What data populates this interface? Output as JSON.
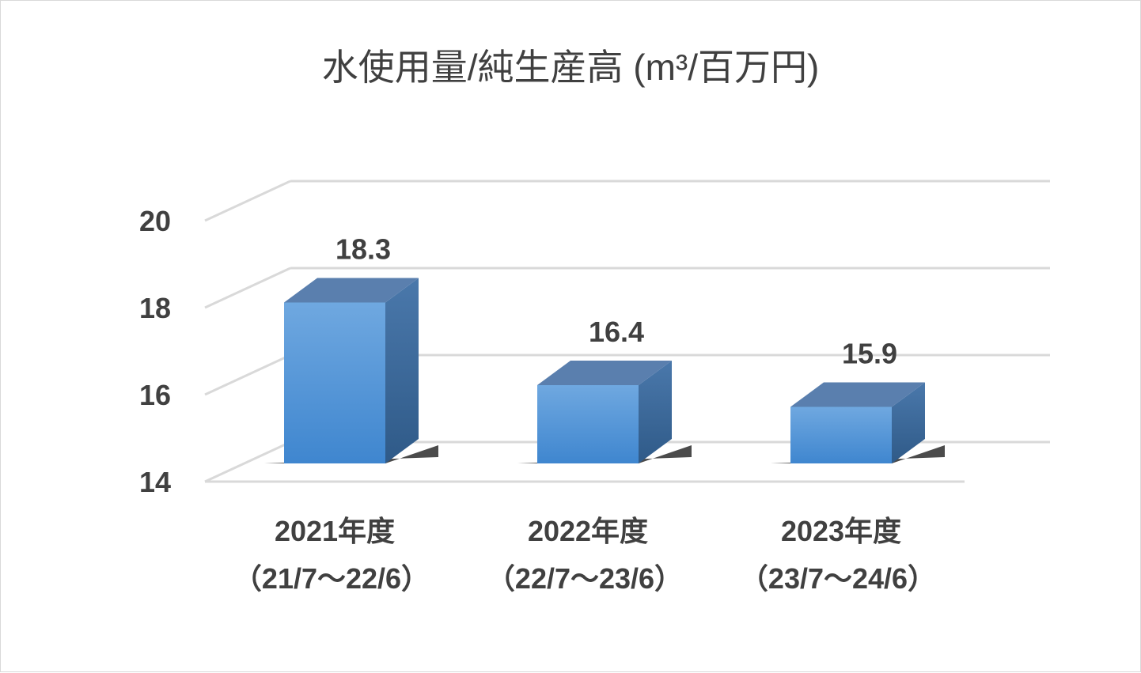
{
  "chart_data": {
    "type": "bar",
    "title": "水使用量/純生産高 (m³/百万円)",
    "categories": [
      {
        "line1": "2021年度",
        "line2": "（21/7～22/6）"
      },
      {
        "line1": "2022年度",
        "line2": "（22/7～23/6）"
      },
      {
        "line1": "2023年度",
        "line2": "（23/7～24/6）"
      }
    ],
    "values": [
      18.3,
      16.4,
      15.9
    ],
    "data_labels": [
      "18.3",
      "16.4",
      "15.9"
    ],
    "ylim": [
      14,
      20
    ],
    "yticks": [
      "14",
      "16",
      "18",
      "20"
    ],
    "grid": true,
    "style": "3d-column",
    "colors": {
      "bar_front_top": "#6fa8e0",
      "bar_front_bottom": "#3f86cf",
      "bar_top": "#5a7fae",
      "bar_side": "#3e6a9c",
      "gridline": "#d9d9d9",
      "text": "#404040"
    }
  }
}
